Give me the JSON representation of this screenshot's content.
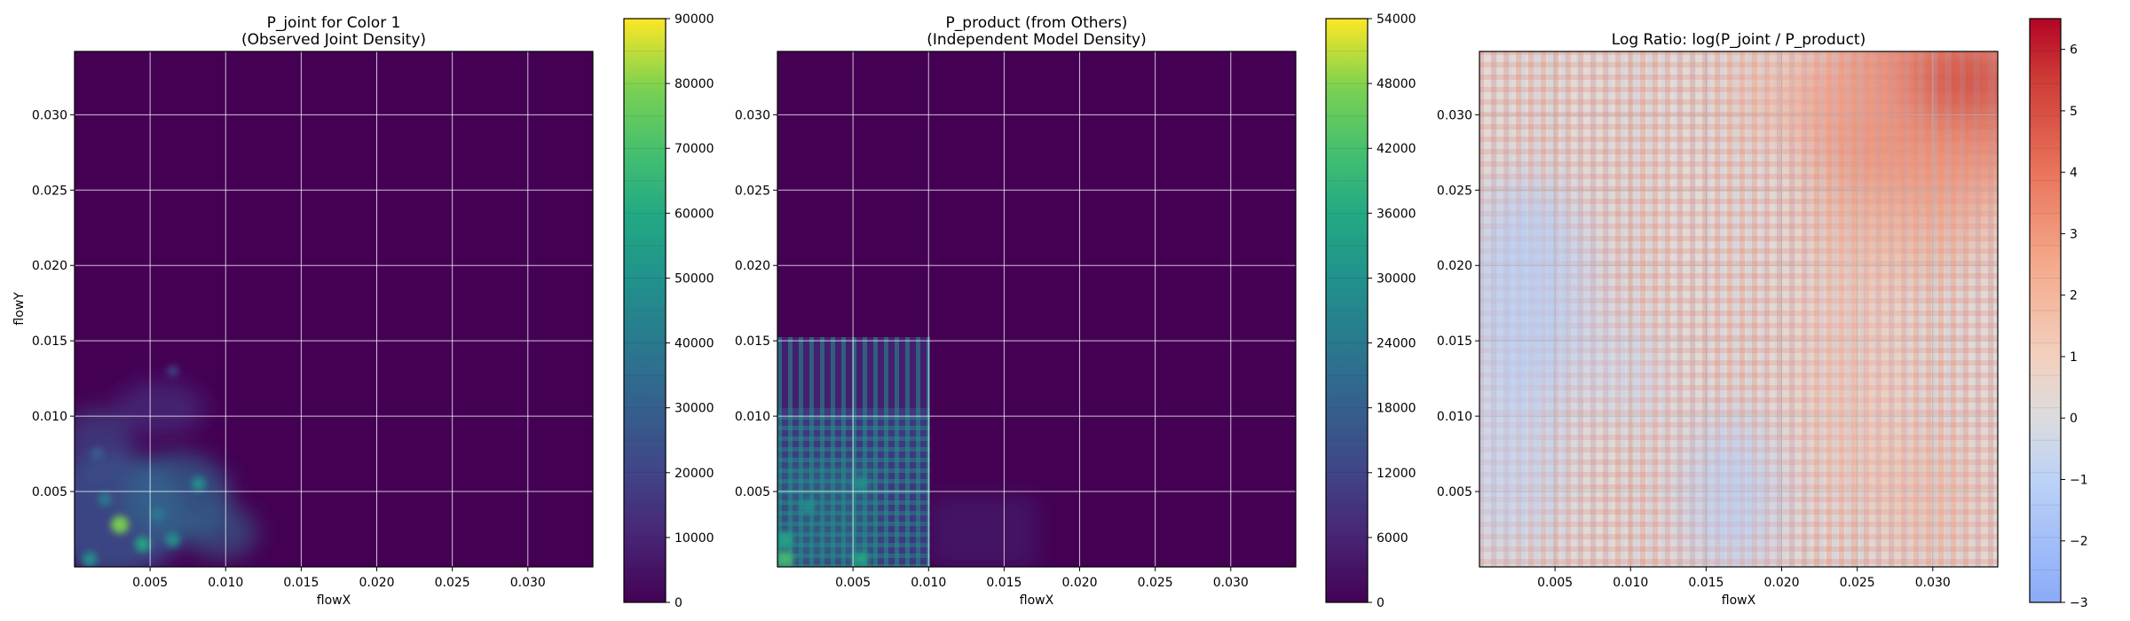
{
  "chart_data": [
    {
      "type": "heatmap",
      "title": "P_joint for Color 1",
      "subtitle": "(Observed Joint Density)",
      "xlabel": "flowX",
      "ylabel": "flowY",
      "xlim": [
        0,
        0.0343
      ],
      "ylim": [
        0,
        0.0342
      ],
      "xticks": [
        "0.005",
        "0.010",
        "0.015",
        "0.020",
        "0.025",
        "0.030"
      ],
      "yticks": [
        "0.005",
        "0.010",
        "0.015",
        "0.020",
        "0.025",
        "0.030"
      ],
      "grid": true,
      "colormap": "viridis",
      "colorbar": {
        "range": [
          0,
          90000
        ],
        "ticks": [
          "0",
          "10000",
          "20000",
          "30000",
          "40000",
          "50000",
          "60000",
          "70000",
          "80000",
          "90000"
        ]
      },
      "hotspots": [
        {
          "x": 0.001,
          "y": 0.0005,
          "value": 52000
        },
        {
          "x": 0.003,
          "y": 0.0028,
          "value": 75000
        },
        {
          "x": 0.0045,
          "y": 0.0015,
          "value": 55000
        },
        {
          "x": 0.0065,
          "y": 0.0018,
          "value": 50000
        },
        {
          "x": 0.0082,
          "y": 0.0055,
          "value": 48000
        },
        {
          "x": 0.002,
          "y": 0.0045,
          "value": 42000
        },
        {
          "x": 0.0055,
          "y": 0.0035,
          "value": 38000
        },
        {
          "x": 0.0015,
          "y": 0.0075,
          "value": 30000
        },
        {
          "x": 0.0065,
          "y": 0.013,
          "value": 22000
        }
      ]
    },
    {
      "type": "heatmap",
      "title": "P_product (from Others)",
      "subtitle": "(Independent Model Density)",
      "xlabel": "flowX",
      "ylabel": "",
      "xlim": [
        0,
        0.0343
      ],
      "ylim": [
        0,
        0.0342
      ],
      "xticks": [
        "0.005",
        "0.010",
        "0.015",
        "0.020",
        "0.025",
        "0.030"
      ],
      "yticks": [
        "0.005",
        "0.010",
        "0.015",
        "0.020",
        "0.025",
        "0.030"
      ],
      "grid": true,
      "colormap": "viridis",
      "colorbar": {
        "range": [
          0,
          54000
        ],
        "ticks": [
          "0",
          "6000",
          "12000",
          "18000",
          "24000",
          "30000",
          "36000",
          "42000",
          "48000",
          "54000"
        ]
      },
      "hotspots": [
        {
          "x": 0.0005,
          "y": 0.0005,
          "value": 40000
        },
        {
          "x": 0.0005,
          "y": 0.0018,
          "value": 38000
        },
        {
          "x": 0.0055,
          "y": 0.0005,
          "value": 36000
        },
        {
          "x": 0.0055,
          "y": 0.0055,
          "value": 30000
        },
        {
          "x": 0.002,
          "y": 0.004,
          "value": 28000
        }
      ]
    },
    {
      "type": "heatmap",
      "title": "Log Ratio: log(P_joint / P_product)",
      "xlabel": "flowX",
      "ylabel": "",
      "xlim": [
        0,
        0.0343
      ],
      "ylim": [
        0,
        0.0342
      ],
      "xticks": [
        "0.005",
        "0.010",
        "0.015",
        "0.020",
        "0.025",
        "0.030"
      ],
      "yticks": [
        "0.005",
        "0.010",
        "0.015",
        "0.020",
        "0.025",
        "0.030"
      ],
      "grid": true,
      "colormap": "coolwarm",
      "colorbar": {
        "range": [
          -3,
          6.5
        ],
        "ticks": [
          "−3",
          "−2",
          "−1",
          "0",
          "1",
          "2",
          "3",
          "4",
          "5",
          "6"
        ]
      },
      "trend": "log ratio increases toward top-right (up to about 6), negative values (about -1 to -2) at low flowX / mid flowY"
    }
  ]
}
